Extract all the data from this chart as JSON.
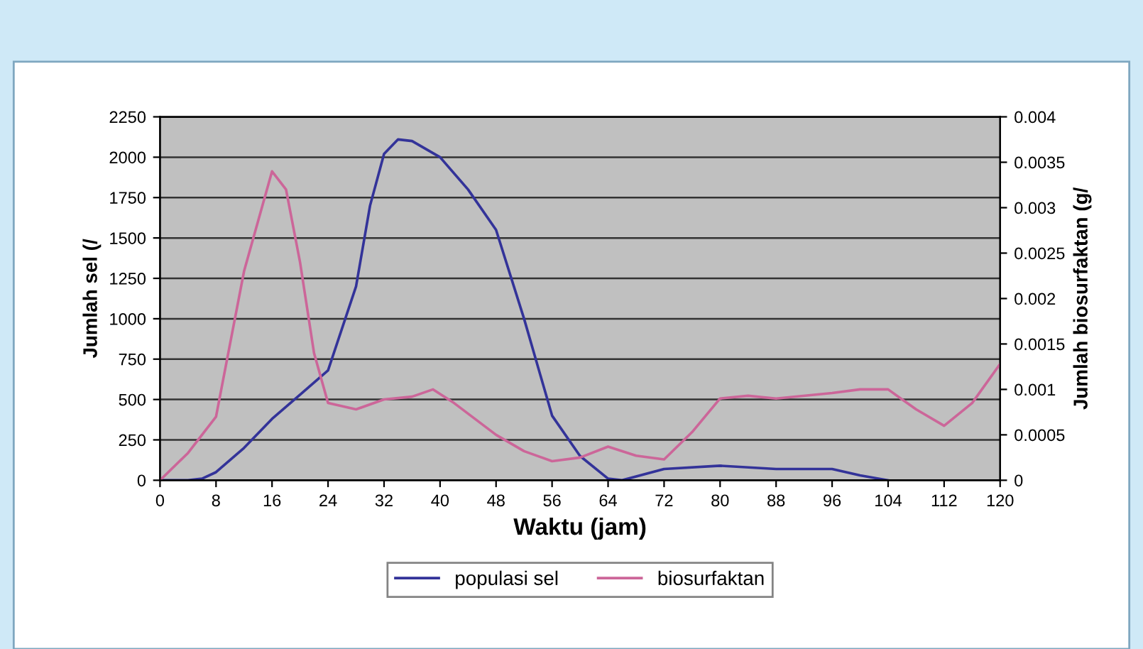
{
  "chart_data": {
    "type": "line",
    "xlabel": "Waktu (jam)",
    "ylabel": "Jumlah sel (/",
    "y2label": "Jumlah biosurfaktan (g/",
    "xlim": [
      0,
      120
    ],
    "xticks": [
      0,
      8,
      16,
      24,
      32,
      40,
      48,
      56,
      64,
      72,
      80,
      88,
      96,
      104,
      112,
      120
    ],
    "ylim": [
      0,
      2250
    ],
    "yticks": [
      0,
      250,
      500,
      750,
      1000,
      1250,
      1500,
      1750,
      2000,
      2250
    ],
    "y2lim": [
      0,
      0.004
    ],
    "y2ticks": [
      0,
      0.0005,
      0.001,
      0.0015,
      0.002,
      0.0025,
      0.003,
      0.0035,
      0.004
    ],
    "grid": "y",
    "legend": "bottom",
    "line_style": "solid",
    "marker": "none",
    "series": [
      {
        "name": "populasi sel",
        "color": "#333399",
        "x": [
          0,
          4,
          6,
          8,
          12,
          16,
          20,
          24,
          28,
          30,
          32,
          34,
          36,
          40,
          44,
          48,
          52,
          56,
          60,
          64,
          66,
          72,
          80,
          88,
          96,
          100,
          104
        ],
        "values": [
          0,
          0,
          10,
          50,
          200,
          380,
          530,
          680,
          1200,
          1700,
          2020,
          2110,
          2100,
          2000,
          1800,
          1550,
          1000,
          400,
          150,
          10,
          0,
          70,
          90,
          70,
          70,
          30,
          0
        ]
      },
      {
        "name": "biosurfaktan",
        "color": "#cc6699",
        "axis": "y2",
        "x": [
          0,
          4,
          8,
          12,
          16,
          18,
          20,
          22,
          24,
          28,
          32,
          36,
          39,
          42,
          48,
          52,
          56,
          60,
          64,
          68,
          72,
          76,
          80,
          84,
          88,
          96,
          100,
          104,
          108,
          112,
          116,
          120
        ],
        "values": [
          0,
          0.0003,
          0.0007,
          0.0023,
          0.0034,
          0.0032,
          0.0024,
          0.0014,
          0.00085,
          0.00078,
          0.00089,
          0.00092,
          0.001,
          0.00085,
          0.0005,
          0.00032,
          0.00021,
          0.00025,
          0.00037,
          0.00027,
          0.00023,
          0.00053,
          0.0009,
          0.00093,
          0.0009,
          0.00096,
          0.001,
          0.001,
          0.00078,
          0.0006,
          0.00085,
          0.00128
        ]
      }
    ]
  }
}
